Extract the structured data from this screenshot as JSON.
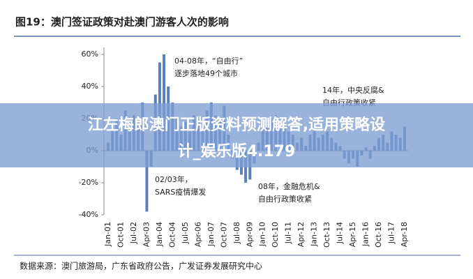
{
  "chart_data": {
    "type": "bar",
    "title": "图19：澳门签证政策对赴澳门游客人次的影响",
    "categories": [
      "Jan-01",
      null,
      null,
      "Oct-01",
      null,
      null,
      "Jul-02",
      null,
      null,
      "Apr-03",
      null,
      null,
      "Jan-04",
      null,
      null,
      "Oct-04",
      null,
      null,
      "Jul-05",
      null,
      null,
      "Apr-06",
      null,
      null,
      "Jan-07",
      null,
      null,
      "Oct-07",
      null,
      null,
      "Jul-08",
      null,
      null,
      "Apr-09",
      null,
      null,
      "Jan-10",
      null,
      null,
      "Oct-10",
      null,
      null,
      "Jul-11",
      null,
      null,
      "Apr-12",
      null,
      null,
      "Jan-13",
      null,
      null,
      "Oct-13",
      null,
      null,
      "Jul-14",
      null,
      null,
      "Apr-15",
      null,
      null,
      "Jan-16",
      null,
      null,
      "Oct-16",
      null,
      null,
      "Jul-17",
      null,
      null,
      "Apr-18"
    ],
    "values": [
      5,
      15,
      20,
      10,
      25,
      18,
      22,
      15,
      30,
      -38,
      -10,
      35,
      55,
      60,
      40,
      30,
      20,
      15,
      18,
      12,
      22,
      20,
      15,
      25,
      30,
      22,
      18,
      28,
      10,
      -5,
      -12,
      -15,
      -20,
      -18,
      -8,
      5,
      15,
      18,
      20,
      22,
      15,
      18,
      12,
      10,
      5,
      8,
      3,
      10,
      12,
      8,
      10,
      12,
      8,
      5,
      3,
      -5,
      -8,
      -5,
      -10,
      -3,
      2,
      -5,
      3,
      8,
      10,
      5,
      12,
      10,
      8,
      15
    ],
    "color": "#5b7fb8",
    "ylim": [
      -40,
      60
    ],
    "yticks": [
      {
        "value": -40,
        "label": "-40%"
      },
      {
        "value": -20,
        "label": "-20%"
      },
      {
        "value": 0,
        "label": "0%"
      },
      {
        "value": 20,
        "label": "20%"
      },
      {
        "value": 40,
        "label": "40%"
      },
      {
        "value": 60,
        "label": "60%"
      }
    ],
    "annotations": [
      [
        "04-08年，“自由行”",
        "逐步落地49个城市"
      ],
      [
        "14年，中央反腐&",
        "自由行政策收紧"
      ],
      [
        "02/03年，",
        "SARS疫情爆发"
      ],
      [
        "08年，金融危机&",
        "自由行政策收紧"
      ]
    ],
    "source": "数据来源：澳门旅游局，广东省政府公告，广发证券发展研究中心"
  },
  "banner": [
    "江左梅郎澳门正版资料预测解答,适用策略设",
    "计_娱乐版4.179"
  ]
}
